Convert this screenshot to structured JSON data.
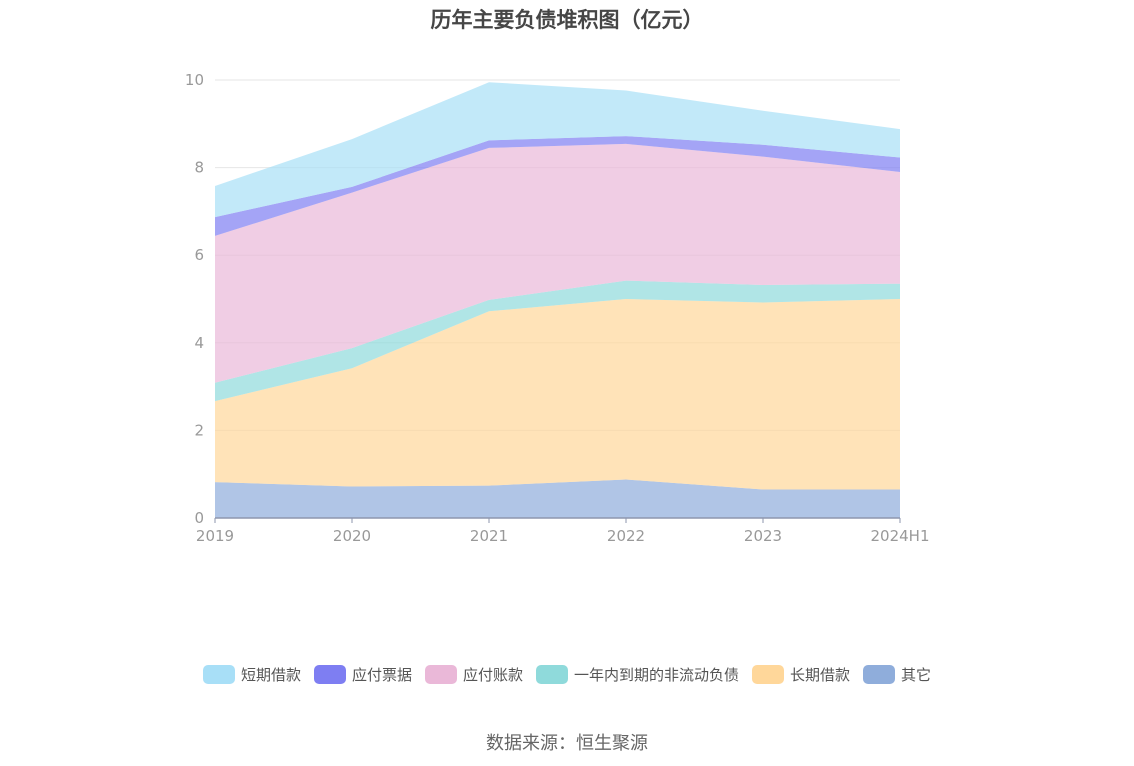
{
  "title": "历年主要负债堆积图（亿元）",
  "source": "数据来源：恒生聚源",
  "chart_data": {
    "type": "area",
    "stacked": true,
    "categories": [
      "2019",
      "2020",
      "2021",
      "2022",
      "2023",
      "2024H1"
    ],
    "ylim": [
      0,
      10
    ],
    "yticks": [
      "0",
      "2",
      "4",
      "6",
      "8",
      "10"
    ],
    "grid": true,
    "legend_position": "bottom",
    "series": [
      {
        "name": "其它",
        "color": "#8FADDB",
        "values": [
          0.82,
          0.72,
          0.74,
          0.88,
          0.65,
          0.65
        ]
      },
      {
        "name": "长期借款",
        "color": "#FFD79A",
        "values": [
          1.85,
          2.7,
          3.98,
          4.12,
          4.27,
          4.35
        ]
      },
      {
        "name": "一年内到期的非流动负债",
        "color": "#8FDADB",
        "values": [
          0.42,
          0.46,
          0.26,
          0.42,
          0.4,
          0.35
        ]
      },
      {
        "name": "应付账款",
        "color": "#EAB8D8",
        "values": [
          3.35,
          3.55,
          3.47,
          3.12,
          2.93,
          2.55
        ]
      },
      {
        "name": "应付票据",
        "color": "#7E7EF2",
        "values": [
          0.43,
          0.13,
          0.17,
          0.18,
          0.27,
          0.33
        ]
      },
      {
        "name": "短期借款",
        "color": "#A8DFF7",
        "values": [
          0.71,
          1.09,
          1.33,
          1.04,
          0.78,
          0.65
        ]
      }
    ]
  },
  "legend_items": [
    {
      "label": "短期借款",
      "color": "#A8DFF7"
    },
    {
      "label": "应付票据",
      "color": "#7E7EF2"
    },
    {
      "label": "应付账款",
      "color": "#EAB8D8"
    },
    {
      "label": "一年内到期的非流动负债",
      "color": "#8FDADB"
    },
    {
      "label": "长期借款",
      "color": "#FFD79A"
    },
    {
      "label": "其它",
      "color": "#8FADDB"
    }
  ]
}
